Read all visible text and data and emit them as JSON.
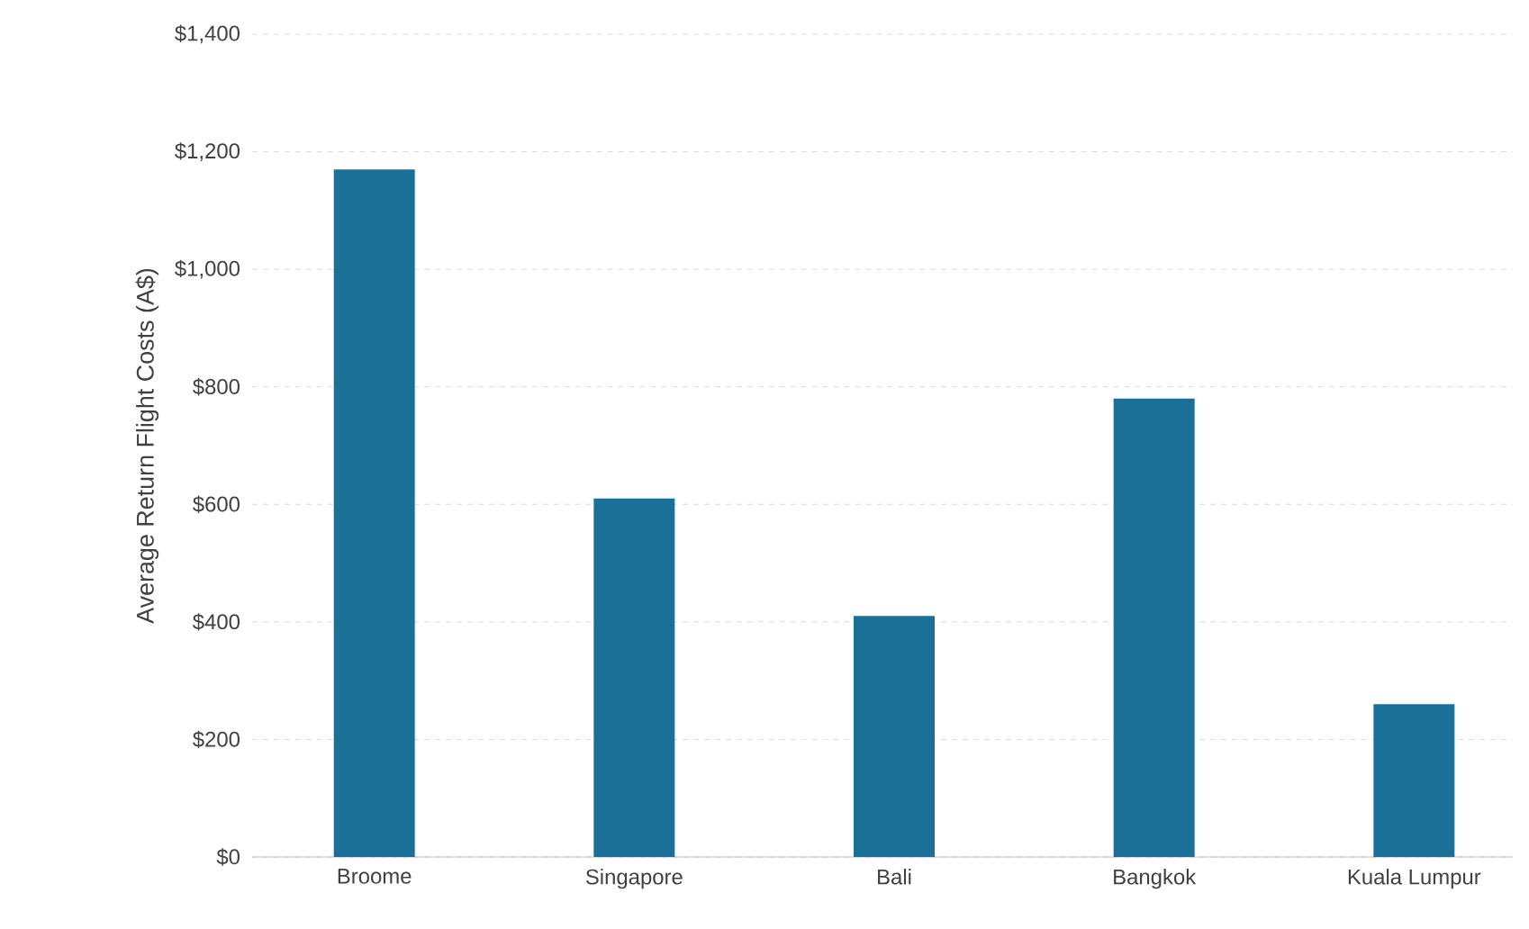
{
  "chart_data": {
    "type": "bar",
    "ylabel": "Average Return Flight Costs (A$)",
    "categories": [
      "Broome",
      "Singapore",
      "Bali",
      "Bangkok",
      "Kuala Lumpur"
    ],
    "values": [
      1170,
      610,
      410,
      780,
      260
    ],
    "color": "#1b7098",
    "ylim": [
      0,
      1400
    ],
    "yticks": [
      {
        "value": 0,
        "label": "$0"
      },
      {
        "value": 200,
        "label": "$200"
      },
      {
        "value": 400,
        "label": "$400"
      },
      {
        "value": 600,
        "label": "$600"
      },
      {
        "value": 800,
        "label": "$800"
      },
      {
        "value": 1000,
        "label": "$1,000"
      },
      {
        "value": 1200,
        "label": "$1,200"
      },
      {
        "value": 1400,
        "label": "$1,400"
      }
    ],
    "grid": "y"
  }
}
